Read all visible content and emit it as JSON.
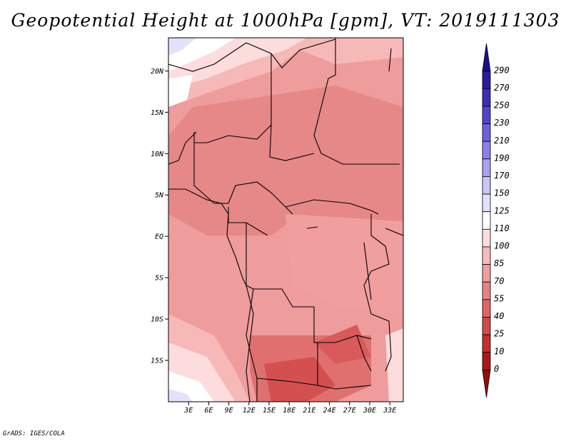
{
  "title": "Geopotential Height at 1000hPa [gpm], VT: 2019111303",
  "credit": "GrADS: IGES/COLA",
  "map": {
    "lat_ticks": [
      {
        "v": 20,
        "label": "20N"
      },
      {
        "v": 15,
        "label": "15N"
      },
      {
        "v": 10,
        "label": "10N"
      },
      {
        "v": 5,
        "label": "5N"
      },
      {
        "v": 0,
        "label": "EQ"
      },
      {
        "v": -5,
        "label": "5S"
      },
      {
        "v": -10,
        "label": "10S"
      },
      {
        "v": -15,
        "label": "15S"
      }
    ],
    "lon_ticks": [
      {
        "v": 3,
        "label": "3E"
      },
      {
        "v": 6,
        "label": "6E"
      },
      {
        "v": 9,
        "label": "9E"
      },
      {
        "v": 12,
        "label": "12E"
      },
      {
        "v": 15,
        "label": "15E"
      },
      {
        "v": 18,
        "label": "18E"
      },
      {
        "v": 21,
        "label": "21E"
      },
      {
        "v": 24,
        "label": "24E"
      },
      {
        "v": 27,
        "label": "27E"
      },
      {
        "v": 30,
        "label": "30E"
      },
      {
        "v": 33,
        "label": "33E"
      }
    ],
    "lon_range": [
      0,
      35
    ],
    "lat_range": [
      -20,
      24
    ]
  },
  "colorbar": {
    "labels": [
      "290",
      "270",
      "250",
      "230",
      "210",
      "190",
      "170",
      "150",
      "125",
      "110",
      "100",
      "85",
      "70",
      "55",
      "40",
      "25",
      "10",
      "0"
    ],
    "colors": [
      "#1c0f8a",
      "#2a1ba0",
      "#3a2eb8",
      "#4f46cc",
      "#6a62dc",
      "#8a80e8",
      "#a9a2f0",
      "#c9c5f8",
      "#e3e2fc",
      "#ffffff",
      "#fcdede",
      "#f6bcbc",
      "#f09e9e",
      "#e88282",
      "#e06666",
      "#d64848",
      "#c42e2e",
      "#ae1818",
      "#900e0e"
    ]
  }
}
